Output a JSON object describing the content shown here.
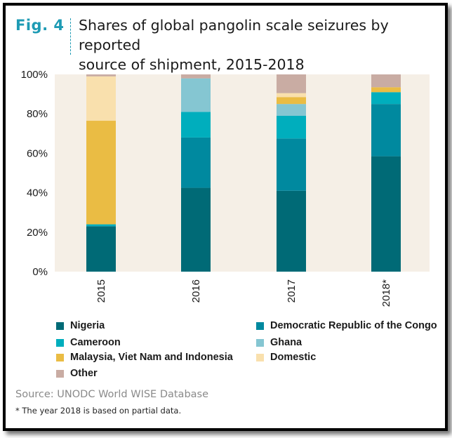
{
  "figure": {
    "label": "Fig. 4",
    "title_line1": "Shares of global pangolin scale seizures by reported",
    "title_line2": "source of shipment, 2015-2018",
    "source": "Source: UNODC World WISE Database",
    "footnote": "* The year 2018 is based on partial data."
  },
  "colors": {
    "accent": "#1e9bb4",
    "plot_background": "#f5efe6"
  },
  "chart_data": {
    "type": "bar",
    "stacked": true,
    "categories": [
      "2015",
      "2016",
      "2017",
      "2018*"
    ],
    "ylim": [
      0,
      100
    ],
    "yticks": [
      0,
      20,
      40,
      60,
      80,
      100
    ],
    "ytick_labels": [
      "0%",
      "20%",
      "40%",
      "60%",
      "80%",
      "100%"
    ],
    "xlabel": "",
    "ylabel": "",
    "legend_position": "bottom",
    "series": [
      {
        "name": "Nigeria",
        "color": "#006a76",
        "values": [
          23,
          42.5,
          41,
          58.5
        ]
      },
      {
        "name": "Democratic Republic of the Congo",
        "color": "#00899f",
        "values": [
          0,
          25.5,
          26.5,
          26.5
        ]
      },
      {
        "name": "Cameroon",
        "color": "#00aebd",
        "values": [
          1,
          13,
          11.5,
          6
        ]
      },
      {
        "name": "Ghana",
        "color": "#85c6d2",
        "values": [
          0,
          17,
          6,
          0
        ]
      },
      {
        "name": "Malaysia, Viet Nam and Indonesia",
        "color": "#eabc44",
        "values": [
          52.5,
          0,
          3.5,
          2.5
        ]
      },
      {
        "name": "Domestic",
        "color": "#f9e0ad",
        "values": [
          22.5,
          0,
          2,
          0
        ]
      },
      {
        "name": "Other",
        "color": "#c9aca3",
        "values": [
          1,
          2,
          9.5,
          6.5
        ]
      }
    ]
  }
}
